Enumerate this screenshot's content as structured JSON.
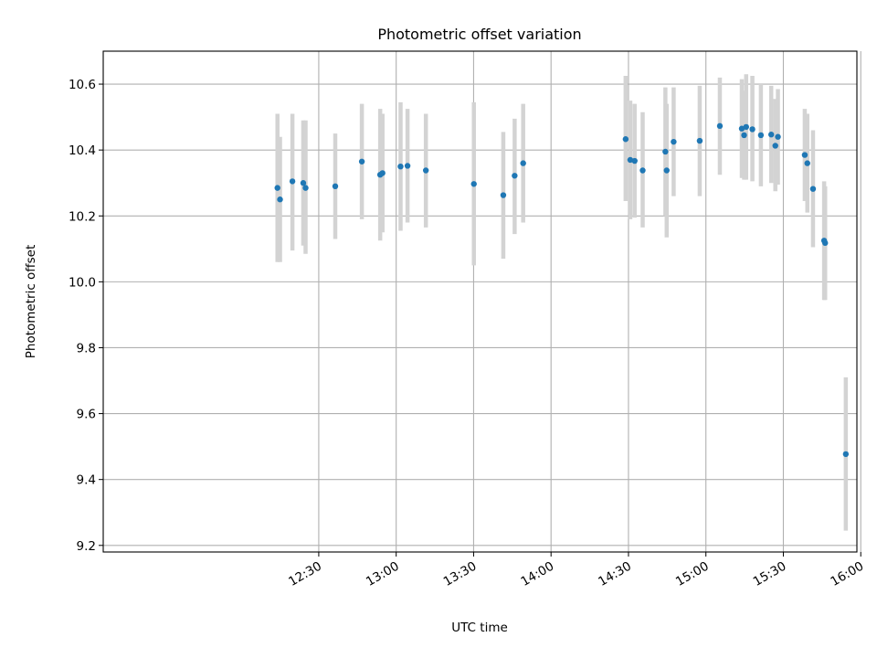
{
  "chart_data": {
    "type": "scatter",
    "title": "Photometric offset variation",
    "xlabel": "UTC time",
    "ylabel": "Photometric offset",
    "x_unit": "minutes since 12:00 UTC",
    "xlim": [
      -53.5,
      238.5
    ],
    "ylim": [
      9.18,
      10.7
    ],
    "grid": true,
    "x_ticks": [
      {
        "value": 30,
        "label": "12:30"
      },
      {
        "value": 60,
        "label": "13:00"
      },
      {
        "value": 90,
        "label": "13:30"
      },
      {
        "value": 120,
        "label": "14:00"
      },
      {
        "value": 150,
        "label": "14:30"
      },
      {
        "value": 180,
        "label": "15:00"
      },
      {
        "value": 210,
        "label": "15:30"
      },
      {
        "value": 240,
        "label": "16:00"
      }
    ],
    "y_ticks": [
      {
        "value": 9.2,
        "label": "9.2"
      },
      {
        "value": 9.4,
        "label": "9.4"
      },
      {
        "value": 9.6,
        "label": "9.6"
      },
      {
        "value": 9.8,
        "label": "9.8"
      },
      {
        "value": 10.0,
        "label": "10.0"
      },
      {
        "value": 10.2,
        "label": "10.2"
      },
      {
        "value": 10.4,
        "label": "10.4"
      },
      {
        "value": 10.6,
        "label": "10.6"
      }
    ],
    "colors": {
      "points": "#1f77b4",
      "errorbars": "#d3d3d3",
      "grid": "#b0b0b0"
    },
    "series": [
      {
        "name": "offset",
        "points": [
          {
            "x": 14.0,
            "y": 10.285,
            "lo": 10.06,
            "hi": 10.51
          },
          {
            "x": 15.0,
            "y": 10.25,
            "lo": 10.06,
            "hi": 10.44
          },
          {
            "x": 19.8,
            "y": 10.305,
            "lo": 10.095,
            "hi": 10.51
          },
          {
            "x": 24.0,
            "y": 10.3,
            "lo": 10.11,
            "hi": 10.49
          },
          {
            "x": 24.9,
            "y": 10.285,
            "lo": 10.085,
            "hi": 10.49
          },
          {
            "x": 36.4,
            "y": 10.29,
            "lo": 10.13,
            "hi": 10.45
          },
          {
            "x": 46.7,
            "y": 10.365,
            "lo": 10.19,
            "hi": 10.54
          },
          {
            "x": 53.8,
            "y": 10.325,
            "lo": 10.125,
            "hi": 10.525
          },
          {
            "x": 54.7,
            "y": 10.33,
            "lo": 10.15,
            "hi": 10.51
          },
          {
            "x": 61.7,
            "y": 10.35,
            "lo": 10.155,
            "hi": 10.545
          },
          {
            "x": 64.4,
            "y": 10.352,
            "lo": 10.18,
            "hi": 10.525
          },
          {
            "x": 71.5,
            "y": 10.338,
            "lo": 10.165,
            "hi": 10.51
          },
          {
            "x": 90.1,
            "y": 10.297,
            "lo": 10.05,
            "hi": 10.545
          },
          {
            "x": 101.5,
            "y": 10.263,
            "lo": 10.07,
            "hi": 10.455
          },
          {
            "x": 105.9,
            "y": 10.322,
            "lo": 10.145,
            "hi": 10.495
          },
          {
            "x": 109.2,
            "y": 10.36,
            "lo": 10.18,
            "hi": 10.54
          },
          {
            "x": 148.9,
            "y": 10.433,
            "lo": 10.245,
            "hi": 10.625
          },
          {
            "x": 150.7,
            "y": 10.37,
            "lo": 10.19,
            "hi": 10.55
          },
          {
            "x": 152.4,
            "y": 10.367,
            "lo": 10.195,
            "hi": 10.54
          },
          {
            "x": 155.5,
            "y": 10.338,
            "lo": 10.165,
            "hi": 10.515
          },
          {
            "x": 164.3,
            "y": 10.395,
            "lo": 10.2,
            "hi": 10.59
          },
          {
            "x": 164.8,
            "y": 10.338,
            "lo": 10.135,
            "hi": 10.54
          },
          {
            "x": 167.5,
            "y": 10.425,
            "lo": 10.26,
            "hi": 10.59
          },
          {
            "x": 177.6,
            "y": 10.428,
            "lo": 10.26,
            "hi": 10.595
          },
          {
            "x": 185.4,
            "y": 10.473,
            "lo": 10.325,
            "hi": 10.62
          },
          {
            "x": 193.9,
            "y": 10.465,
            "lo": 10.315,
            "hi": 10.615
          },
          {
            "x": 194.8,
            "y": 10.445,
            "lo": 10.31,
            "hi": 10.58
          },
          {
            "x": 195.6,
            "y": 10.47,
            "lo": 10.31,
            "hi": 10.63
          },
          {
            "x": 198.0,
            "y": 10.463,
            "lo": 10.305,
            "hi": 10.625
          },
          {
            "x": 201.3,
            "y": 10.445,
            "lo": 10.29,
            "hi": 10.6
          },
          {
            "x": 205.3,
            "y": 10.447,
            "lo": 10.3,
            "hi": 10.595
          },
          {
            "x": 206.9,
            "y": 10.413,
            "lo": 10.275,
            "hi": 10.555
          },
          {
            "x": 207.9,
            "y": 10.44,
            "lo": 10.295,
            "hi": 10.585
          },
          {
            "x": 218.3,
            "y": 10.385,
            "lo": 10.245,
            "hi": 10.525
          },
          {
            "x": 219.3,
            "y": 10.36,
            "lo": 10.21,
            "hi": 10.51
          },
          {
            "x": 221.5,
            "y": 10.282,
            "lo": 10.105,
            "hi": 10.46
          },
          {
            "x": 225.8,
            "y": 10.125,
            "lo": 9.945,
            "hi": 10.305
          },
          {
            "x": 226.2,
            "y": 10.118,
            "lo": 9.945,
            "hi": 10.29
          },
          {
            "x": 234.2,
            "y": 9.477,
            "lo": 9.245,
            "hi": 9.71
          }
        ]
      }
    ]
  }
}
